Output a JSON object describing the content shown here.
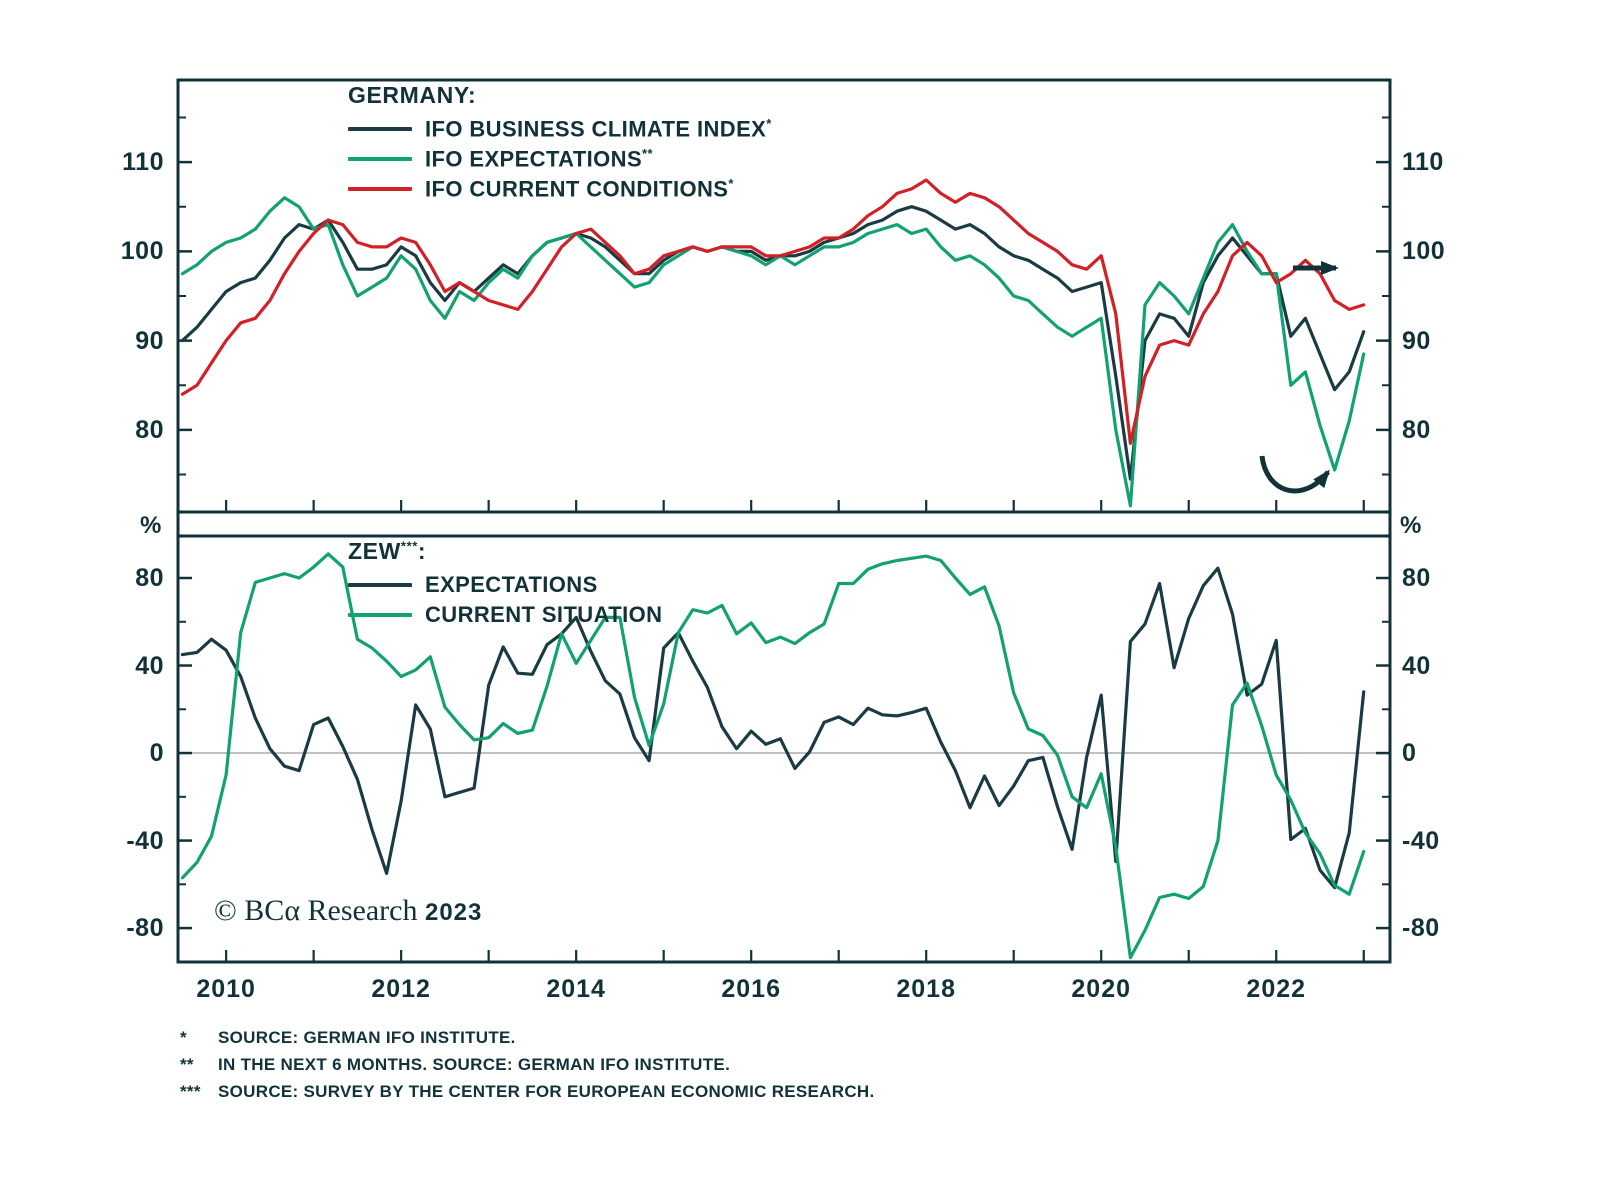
{
  "colors": {
    "background": "#ffffff",
    "frame": "#113239",
    "text": "#113239",
    "dark_series": "#1a3a44",
    "green_series": "#12a170",
    "red_series": "#d22027",
    "zero_line": "#9a9a9a"
  },
  "chart_data": [
    {
      "type": "line",
      "panel": "top",
      "legend_title": "GERMANY:",
      "x_start": 2009.5,
      "x_step": 0.166667,
      "xlim": [
        2009.45,
        2023.3
      ],
      "ylim": [
        70.8,
        119.2
      ],
      "yticks": [
        110,
        100,
        90,
        80
      ],
      "yticks_minor": [
        115,
        105,
        95,
        85,
        75
      ],
      "xticks_minor": [
        2010,
        2011,
        2012,
        2013,
        2014,
        2015,
        2016,
        2017,
        2018,
        2019,
        2020,
        2021,
        2022,
        2023
      ],
      "grid": false,
      "legend_position": "top-left-inside",
      "annotations": [
        "right-direction-arrow",
        "rebound-curved-arrow"
      ],
      "series": [
        {
          "name": "IFO BUSINESS CLIMATE INDEX",
          "footnote_marker": "*",
          "color": "#1a3a44",
          "values": [
            90,
            91.5,
            93.5,
            95.5,
            96.5,
            97,
            99,
            101.5,
            103,
            102.5,
            103.5,
            101,
            98,
            98,
            98.5,
            100.5,
            99.5,
            96.5,
            94.5,
            96.5,
            95.5,
            97,
            98.5,
            97.5,
            99.5,
            101,
            101.5,
            102,
            101.5,
            100.5,
            99,
            97.5,
            97.5,
            99,
            100,
            100.5,
            100,
            100.5,
            100,
            100,
            99,
            99.5,
            99.5,
            100,
            101,
            101.5,
            102,
            103,
            103.5,
            104.5,
            105,
            104.5,
            103.5,
            102.5,
            103,
            102,
            100.5,
            99.5,
            99,
            98,
            97,
            95.5,
            96,
            96.5,
            86,
            74.5,
            90,
            93,
            92.5,
            90.5,
            96.5,
            99.5,
            101.5,
            99.5,
            97.5,
            97.5,
            90.5,
            92.5,
            88.5,
            84.5,
            86.5,
            91
          ]
        },
        {
          "name": "IFO EXPECTATIONS",
          "footnote_marker": "**",
          "color": "#12a170",
          "values": [
            97.5,
            98.5,
            100,
            101,
            101.5,
            102.5,
            104.5,
            106,
            105,
            102.5,
            103,
            98.5,
            95,
            96,
            97,
            99.5,
            98,
            94.5,
            92.5,
            95.5,
            94.5,
            96.5,
            98,
            97,
            99.5,
            101,
            101.5,
            102,
            100.5,
            99,
            97.5,
            96,
            96.5,
            98.5,
            99.5,
            100.5,
            100,
            100.5,
            100,
            99.5,
            98.5,
            99.5,
            98.5,
            99.5,
            100.5,
            100.5,
            101,
            102,
            102.5,
            103,
            102,
            102.5,
            100.5,
            99,
            99.5,
            98.5,
            97,
            95,
            94.5,
            93,
            91.5,
            90.5,
            91.5,
            92.5,
            80,
            71.5,
            94,
            96.5,
            95,
            93,
            97,
            101,
            103,
            100,
            97.5,
            97.5,
            85,
            86.5,
            80.5,
            75.5,
            81,
            88.5
          ]
        },
        {
          "name": "IFO CURRENT CONDITIONS",
          "footnote_marker": "*",
          "color": "#d22027",
          "values": [
            84,
            85,
            87.5,
            90,
            92,
            92.5,
            94.5,
            97.5,
            100,
            102,
            103.5,
            103,
            101,
            100.5,
            100.5,
            101.5,
            101,
            98.5,
            95.5,
            96.5,
            95.5,
            94.5,
            94,
            93.5,
            95.5,
            98,
            100.5,
            102,
            102.5,
            101,
            99.5,
            97.5,
            98,
            99.5,
            100,
            100.5,
            100,
            100.5,
            100.5,
            100.5,
            99.5,
            99.5,
            100,
            100.5,
            101.5,
            101.5,
            102.5,
            104,
            105,
            106.5,
            107,
            108,
            106.5,
            105.5,
            106.5,
            106,
            105,
            103.5,
            102,
            101,
            100,
            98.5,
            98,
            99.5,
            93,
            78.5,
            86,
            89.5,
            90,
            89.5,
            93,
            95.5,
            99.5,
            101,
            99.5,
            96.5,
            97.5,
            99,
            97.5,
            94.5,
            93.5,
            94
          ]
        }
      ]
    },
    {
      "type": "line",
      "panel": "bottom",
      "legend_title": "ZEW",
      "legend_title_marker": "***",
      "legend_title_suffix": ":",
      "y_unit": "%",
      "x_start": 2009.5,
      "x_step": 0.166667,
      "xlim": [
        2009.45,
        2023.3
      ],
      "ylim": [
        -95.5,
        99.2
      ],
      "yticks": [
        80,
        40,
        0,
        -40,
        -80
      ],
      "yticks_minor": [
        60,
        20,
        -20,
        -60
      ],
      "xticks_minor": [
        2010,
        2011,
        2012,
        2013,
        2014,
        2015,
        2016,
        2017,
        2018,
        2019,
        2020,
        2021,
        2022,
        2023
      ],
      "xticks_labeled": [
        2010,
        2012,
        2014,
        2016,
        2018,
        2020,
        2022
      ],
      "zero_line": true,
      "grid": false,
      "legend_position": "top-left-inside",
      "series": [
        {
          "name": "EXPECTATIONS",
          "color": "#1a3a44",
          "values": [
            45,
            46,
            52,
            47,
            35,
            16,
            2,
            -6,
            -8,
            13,
            16,
            3,
            -12,
            -35,
            -55,
            -22,
            22,
            11,
            -20,
            -18,
            -16,
            31,
            48.5,
            36.5,
            36,
            49.5,
            54.5,
            62,
            46.5,
            33,
            27,
            7,
            -3.5,
            48,
            55,
            42,
            30,
            12,
            2,
            10,
            4,
            6.5,
            -7,
            0.5,
            14,
            16.5,
            13,
            20.5,
            17.5,
            17,
            18.5,
            20.5,
            5,
            -8,
            -25,
            -10.5,
            -24,
            -15,
            -3.5,
            -2,
            -24.5,
            -44,
            -2,
            26.5,
            -49.5,
            51,
            59,
            77.5,
            39,
            61.5,
            76.5,
            84.5,
            63.5,
            26.5,
            31.5,
            51.5,
            -39.5,
            -34.5,
            -53.5,
            -61.5,
            -36.5,
            28
          ]
        },
        {
          "name": "CURRENT SITUATION",
          "color": "#12a170",
          "values": [
            -57,
            -50,
            -38,
            -10,
            55,
            78,
            80,
            82,
            80,
            85,
            91,
            85,
            52,
            48,
            42,
            35,
            38,
            44,
            21,
            13,
            6,
            7,
            13.5,
            9,
            10.5,
            30.5,
            54.5,
            41,
            51.5,
            62,
            62,
            25.5,
            3.5,
            22.5,
            55,
            65.5,
            64,
            67.5,
            54.5,
            59.5,
            50.5,
            53,
            50,
            55,
            59,
            77.5,
            77.5,
            84,
            86.5,
            88,
            89,
            90,
            88,
            80,
            72.5,
            76,
            58,
            27.5,
            11,
            8,
            -1,
            -20,
            -25,
            -9.5,
            -43,
            -93.5,
            -81,
            -66,
            -64.5,
            -66.5,
            -61,
            -40,
            22,
            32,
            12.5,
            -10,
            -21.5,
            -36.5,
            -46,
            -60.5,
            -64.5,
            -45
          ]
        }
      ]
    }
  ],
  "branding": {
    "copyright": "© BCα Research",
    "year": "2023"
  },
  "footnotes": [
    {
      "marker": "*",
      "text": "SOURCE: GERMAN IFO INSTITUTE."
    },
    {
      "marker": "**",
      "text": "IN THE NEXT 6 MONTHS. SOURCE: GERMAN IFO INSTITUTE."
    },
    {
      "marker": "***",
      "text": "SOURCE: SURVEY BY THE CENTER FOR EUROPEAN ECONOMIC RESEARCH."
    }
  ]
}
